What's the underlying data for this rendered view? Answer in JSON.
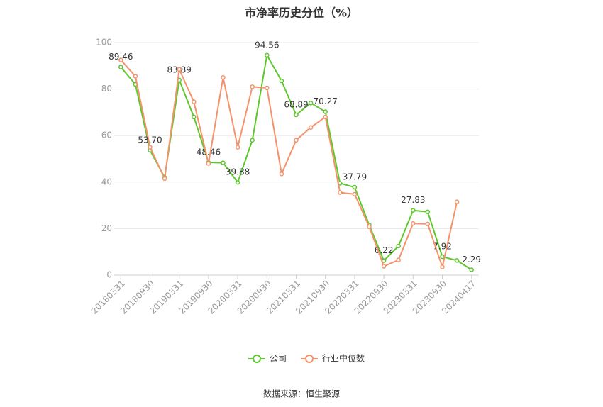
{
  "chart_data": {
    "type": "line",
    "title": "市净率历史分位（%）",
    "source": "数据来源：恒生聚源",
    "categories": [
      "20180331",
      null,
      "20180930",
      null,
      "20190331",
      null,
      "20190930",
      null,
      "20200331",
      null,
      "20200930",
      null,
      "20210331",
      null,
      "20210930",
      null,
      "20220331",
      null,
      "20220930",
      null,
      "20230331",
      null,
      "20230930",
      null,
      "20240417"
    ],
    "ylim": [
      0,
      100
    ],
    "yticks": [
      0,
      20,
      40,
      60,
      80,
      100
    ],
    "grid": true,
    "legend": "bottom",
    "series": [
      {
        "name": "公司",
        "color": "#5ec72e",
        "values": [
          89.46,
          82,
          53.7,
          42,
          83.89,
          68,
          48.46,
          48.3,
          39.88,
          58,
          94.56,
          83.5,
          68.89,
          74,
          70.27,
          39.5,
          37.79,
          21.5,
          6.22,
          12.5,
          27.83,
          27.2,
          7.92,
          6.3,
          2.29
        ],
        "value_labels": [
          "89.46",
          null,
          "53.70",
          null,
          "83.89",
          null,
          "48.46",
          null,
          "39.88",
          null,
          "94.56",
          null,
          "68.89",
          null,
          "70.27",
          null,
          "37.79",
          null,
          "6.22",
          null,
          "27.83",
          null,
          "7.92",
          null,
          "2.29"
        ]
      },
      {
        "name": "行业中位数",
        "color": "#f4936b",
        "values": [
          92.5,
          85.5,
          55,
          41.5,
          88.5,
          74.5,
          48,
          85,
          55,
          81,
          80.5,
          43.5,
          58,
          63.5,
          68,
          35.5,
          34.8,
          20.8,
          3.8,
          6.5,
          22.2,
          22,
          3.5,
          31.5,
          null
        ]
      }
    ]
  }
}
